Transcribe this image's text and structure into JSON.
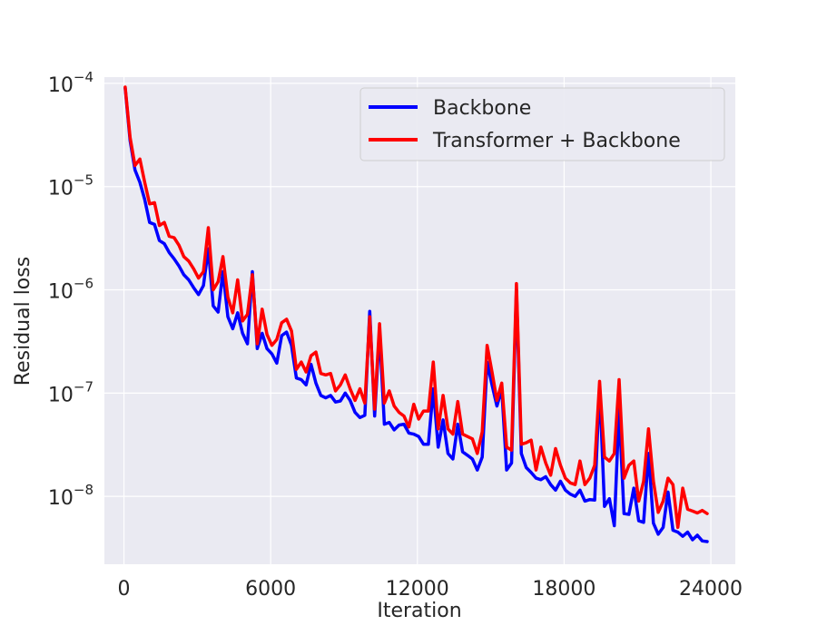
{
  "chart_data": {
    "type": "line",
    "title": "",
    "xlabel": "Iteration",
    "ylabel": "Residual loss",
    "xlim": [
      -800,
      25000
    ],
    "ylim": [
      2.2e-09,
      0.000115
    ],
    "yscale": "log",
    "grid": true,
    "legend_position": "top-right",
    "background_color": "#EAEAF2",
    "grid_color": "#FFFFFF",
    "x_ticks": [
      0,
      6000,
      12000,
      18000,
      24000
    ],
    "x_tick_labels": [
      "0",
      "6000",
      "12000",
      "18000",
      "24000"
    ],
    "y_ticks": [
      1e-08,
      1e-07,
      1e-06,
      1e-05,
      0.0001
    ],
    "y_tick_labels": [
      {
        "base": "10",
        "exp": "−8"
      },
      {
        "base": "10",
        "exp": "−7"
      },
      {
        "base": "10",
        "exp": "−6"
      },
      {
        "base": "10",
        "exp": "−5"
      },
      {
        "base": "10",
        "exp": "−4"
      }
    ],
    "series": [
      {
        "name": "Backbone",
        "color": "#0000FF",
        "x": [
          50,
          250,
          450,
          650,
          850,
          1050,
          1250,
          1450,
          1650,
          1850,
          2050,
          2250,
          2450,
          2650,
          2850,
          3050,
          3250,
          3450,
          3650,
          3850,
          4050,
          4250,
          4450,
          4650,
          4850,
          5050,
          5250,
          5450,
          5650,
          5850,
          6050,
          6250,
          6450,
          6650,
          6850,
          7050,
          7250,
          7450,
          7650,
          7850,
          8050,
          8250,
          8450,
          8650,
          8850,
          9050,
          9250,
          9450,
          9650,
          9850,
          10050,
          10250,
          10450,
          10650,
          10850,
          11050,
          11250,
          11450,
          11650,
          11850,
          12050,
          12250,
          12450,
          12650,
          12850,
          13050,
          13250,
          13450,
          13650,
          13850,
          14050,
          14250,
          14450,
          14650,
          14850,
          15050,
          15250,
          15450,
          15650,
          15850,
          16050,
          16250,
          16450,
          16650,
          16850,
          17050,
          17250,
          17450,
          17650,
          17850,
          18050,
          18250,
          18450,
          18650,
          18850,
          19050,
          19250,
          19450,
          19650,
          19850,
          20050,
          20250,
          20450,
          20650,
          20850,
          21050,
          21250,
          21450,
          21650,
          21850,
          22050,
          22250,
          22450,
          22650,
          22850,
          23050,
          23250,
          23450,
          23650,
          23850
        ],
        "values": [
          9e-05,
          2.8e-05,
          1.45e-05,
          1.1e-05,
          7.5e-06,
          4.5e-06,
          4.3e-06,
          3e-06,
          2.8e-06,
          2.3e-06,
          2e-06,
          1.7e-06,
          1.4e-06,
          1.25e-06,
          1.05e-06,
          9e-07,
          1.1e-06,
          2.5e-06,
          7e-07,
          6.1e-07,
          1.5e-06,
          5.5e-07,
          4.2e-07,
          6e-07,
          3.8e-07,
          3e-07,
          1.5e-06,
          2.7e-07,
          3.8e-07,
          2.7e-07,
          2.4e-07,
          1.95e-07,
          3.6e-07,
          3.9e-07,
          2.9e-07,
          1.4e-07,
          1.35e-07,
          1.2e-07,
          1.9e-07,
          1.25e-07,
          9.5e-08,
          9e-08,
          9.5e-08,
          8.2e-08,
          8.4e-08,
          1e-07,
          8.5e-08,
          6.5e-08,
          5.8e-08,
          6.1e-08,
          6.2e-07,
          6e-08,
          4e-07,
          5e-08,
          5.2e-08,
          4.4e-08,
          4.9e-08,
          5e-08,
          4.1e-08,
          4e-08,
          3.8e-08,
          3.2e-08,
          3.2e-08,
          1.1e-07,
          3e-08,
          5.5e-08,
          2.6e-08,
          2.3e-08,
          5e-08,
          2.7e-08,
          2.5e-08,
          2.3e-08,
          1.8e-08,
          2.4e-08,
          2e-07,
          1.2e-07,
          7.5e-08,
          1.1e-07,
          1.8e-08,
          2.1e-08,
          1e-06,
          2.6e-08,
          1.9e-08,
          1.7e-08,
          1.5e-08,
          1.45e-08,
          1.55e-08,
          1.3e-08,
          1.15e-08,
          1.4e-08,
          1.15e-08,
          1.05e-08,
          1e-08,
          1.15e-08,
          9e-09,
          9.3e-09,
          9.2e-09,
          1.2e-07,
          8e-09,
          9.5e-09,
          5.2e-09,
          7e-08,
          6.8e-09,
          6.7e-09,
          1.2e-08,
          5.8e-09,
          5.6e-09,
          2.6e-08,
          5.5e-09,
          4.3e-09,
          5e-09,
          1.1e-08,
          4.7e-09,
          4.5e-09,
          4.1e-09,
          4.5e-09,
          3.8e-09,
          4.2e-09,
          3.7e-09,
          3.65e-09
        ]
      },
      {
        "name": "Transformer + Backbone",
        "color": "#FF0000",
        "x": [
          50,
          250,
          450,
          650,
          850,
          1050,
          1250,
          1450,
          1650,
          1850,
          2050,
          2250,
          2450,
          2650,
          2850,
          3050,
          3250,
          3450,
          3650,
          3850,
          4050,
          4250,
          4450,
          4650,
          4850,
          5050,
          5250,
          5450,
          5650,
          5850,
          6050,
          6250,
          6450,
          6650,
          6850,
          7050,
          7250,
          7450,
          7650,
          7850,
          8050,
          8250,
          8450,
          8650,
          8850,
          9050,
          9250,
          9450,
          9650,
          9850,
          10050,
          10250,
          10450,
          10650,
          10850,
          11050,
          11250,
          11450,
          11650,
          11850,
          12050,
          12250,
          12450,
          12650,
          12850,
          13050,
          13250,
          13450,
          13650,
          13850,
          14050,
          14250,
          14450,
          14650,
          14850,
          15050,
          15250,
          15450,
          15650,
          15850,
          16050,
          16250,
          16450,
          16650,
          16850,
          17050,
          17250,
          17450,
          17650,
          17850,
          18050,
          18250,
          18450,
          18650,
          18850,
          19050,
          19250,
          19450,
          19650,
          19850,
          20050,
          20250,
          20450,
          20650,
          20850,
          21050,
          21250,
          21450,
          21650,
          21850,
          22050,
          22250,
          22450,
          22650,
          22850,
          23050,
          23250,
          23450,
          23650,
          23850
        ],
        "values": [
          9.2e-05,
          3e-05,
          1.6e-05,
          1.85e-05,
          1.1e-05,
          6.8e-06,
          7e-06,
          4.2e-06,
          4.5e-06,
          3.3e-06,
          3.2e-06,
          2.7e-06,
          2.1e-06,
          1.9e-06,
          1.6e-06,
          1.3e-06,
          1.5e-06,
          4e-06,
          1e-06,
          1.2e-06,
          2.1e-06,
          8.5e-07,
          6e-07,
          1.25e-06,
          5e-07,
          5.8e-07,
          1.4e-06,
          3e-07,
          6.5e-07,
          3.7e-07,
          2.9e-07,
          3.3e-07,
          4.8e-07,
          5.2e-07,
          4e-07,
          1.7e-07,
          2e-07,
          1.6e-07,
          2.3e-07,
          2.5e-07,
          1.55e-07,
          1.5e-07,
          1.55e-07,
          1.05e-07,
          1.2e-07,
          1.5e-07,
          1.1e-07,
          8.5e-08,
          1.1e-07,
          8e-08,
          5.5e-07,
          7e-08,
          4.7e-07,
          8e-08,
          1.05e-07,
          7.5e-08,
          6.5e-08,
          6e-08,
          4.7e-08,
          7.8e-08,
          5.6e-08,
          6.7e-08,
          6.7e-08,
          2e-07,
          4.5e-08,
          9.5e-08,
          4.5e-08,
          4e-08,
          8.3e-08,
          4e-08,
          3.8e-08,
          3.6e-08,
          2.6e-08,
          4.2e-08,
          2.9e-07,
          1.6e-07,
          8.5e-08,
          1.25e-07,
          3e-08,
          2.8e-08,
          1.15e-06,
          3.2e-08,
          3.3e-08,
          3.5e-08,
          1.8e-08,
          3e-08,
          2.1e-08,
          1.6e-08,
          2.9e-08,
          2e-08,
          1.5e-08,
          1.35e-08,
          1.3e-08,
          2.2e-08,
          1.3e-08,
          1.5e-08,
          2e-08,
          1.3e-07,
          2.4e-08,
          2.2e-08,
          2.6e-08,
          1.35e-07,
          1.5e-08,
          2e-08,
          2.2e-08,
          9e-09,
          1.4e-08,
          4.5e-08,
          1.4e-08,
          7e-09,
          9e-09,
          1.5e-08,
          1.3e-08,
          5e-09,
          1.2e-08,
          7.5e-09,
          7.2e-09,
          6.9e-09,
          7.3e-09,
          6.8e-09
        ]
      }
    ]
  }
}
